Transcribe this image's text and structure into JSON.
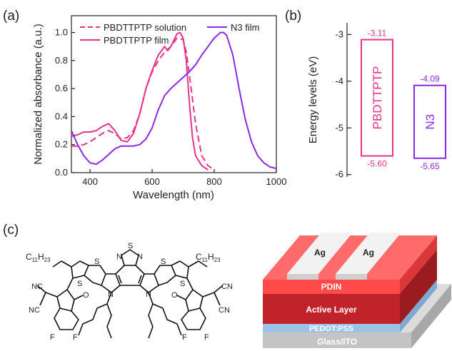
{
  "panels": {
    "a": "(a)",
    "b": "(b)",
    "c": "(c)"
  },
  "chart_data": [
    {
      "type": "line",
      "xlabel": "Wavelength (nm)",
      "ylabel": "Normalized absorbance (a.u.)",
      "xlim": [
        340,
        1000
      ],
      "ylim": [
        0,
        1.12
      ],
      "xticks": [
        400,
        600,
        800,
        1000
      ],
      "yticks": [
        0.0,
        0.2,
        0.4,
        0.6,
        0.8,
        1.0
      ],
      "legend_position": "top",
      "series": [
        {
          "name": "PBDTTPTP solution",
          "color": "#e8338a",
          "style": "dashed",
          "x": [
            340,
            360,
            380,
            400,
            420,
            440,
            460,
            480,
            500,
            520,
            540,
            560,
            580,
            600,
            620,
            640,
            660,
            680,
            700,
            710,
            720,
            740,
            760,
            780,
            800
          ],
          "y": [
            0.19,
            0.19,
            0.2,
            0.22,
            0.25,
            0.28,
            0.3,
            0.28,
            0.24,
            0.25,
            0.3,
            0.42,
            0.6,
            0.72,
            0.8,
            0.86,
            0.9,
            0.96,
            0.95,
            0.86,
            0.7,
            0.35,
            0.12,
            0.05,
            0.02
          ]
        },
        {
          "name": "PBDTTPTP film",
          "color": "#e8338a",
          "style": "solid",
          "x": [
            340,
            360,
            380,
            400,
            420,
            440,
            460,
            480,
            500,
            520,
            540,
            560,
            580,
            600,
            620,
            640,
            650,
            660,
            680,
            690,
            700,
            710,
            720,
            730,
            740,
            760,
            780
          ],
          "y": [
            0.26,
            0.27,
            0.29,
            0.29,
            0.3,
            0.33,
            0.35,
            0.3,
            0.23,
            0.22,
            0.28,
            0.42,
            0.6,
            0.73,
            0.84,
            0.9,
            0.87,
            0.9,
            0.99,
            1.0,
            0.96,
            0.8,
            0.5,
            0.25,
            0.12,
            0.05,
            0.02
          ]
        },
        {
          "name": "N3 film",
          "color": "#8a2be2",
          "style": "solid",
          "x": [
            340,
            360,
            380,
            400,
            420,
            440,
            460,
            480,
            500,
            520,
            540,
            560,
            580,
            600,
            620,
            640,
            660,
            680,
            700,
            720,
            740,
            760,
            780,
            800,
            820,
            830,
            840,
            860,
            880,
            900,
            920,
            940,
            960,
            980,
            1000
          ],
          "y": [
            0.3,
            0.2,
            0.12,
            0.07,
            0.06,
            0.09,
            0.13,
            0.17,
            0.19,
            0.19,
            0.19,
            0.2,
            0.24,
            0.32,
            0.45,
            0.55,
            0.6,
            0.64,
            0.68,
            0.72,
            0.77,
            0.84,
            0.9,
            0.96,
            1.0,
            1.0,
            0.98,
            0.84,
            0.6,
            0.38,
            0.22,
            0.12,
            0.07,
            0.04,
            0.03
          ]
        }
      ]
    },
    {
      "type": "bar",
      "ylabel": "Energy levels (eV)",
      "ylim": [
        -6.05,
        -2.75
      ],
      "yticks": [
        -3,
        -4,
        -5,
        -6
      ],
      "bars": [
        {
          "name": "PBDTTPTP",
          "color": "#e8338a",
          "top": -3.11,
          "bottom": -5.6,
          "top_label": "-3.11",
          "bottom_label": "-5.60"
        },
        {
          "name": "N3",
          "color": "#8a2be2",
          "top": -4.09,
          "bottom": -5.65,
          "top_label": "-4.09",
          "bottom_label": "-5.65"
        }
      ]
    }
  ],
  "molecule": {
    "left_alkyl": "C11H23",
    "right_alkyl": "C11H23",
    "atoms": {
      "S": "S",
      "N": "N",
      "O": "O",
      "F": "F",
      "CN": "CN",
      "NC": "NC"
    }
  },
  "device": {
    "layers": [
      {
        "name": "Ag",
        "color": "#e0e0e0"
      },
      {
        "name": "PDIN",
        "color": "#ff4a4a"
      },
      {
        "name": "Active Layer",
        "color": "#c0242a"
      },
      {
        "name": "PEDOT:PSS",
        "color": "#9cc3e6"
      },
      {
        "name": "Glass/ITO",
        "color": "#c8c8c8"
      }
    ],
    "electrode_labels": [
      "Ag",
      "Ag"
    ]
  }
}
